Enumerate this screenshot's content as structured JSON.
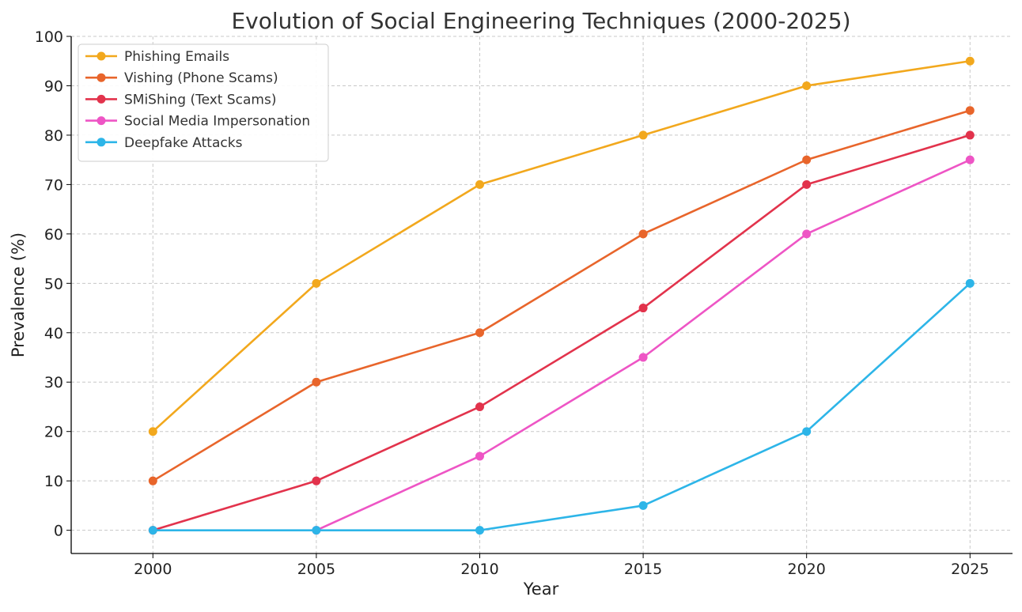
{
  "chart_data": {
    "type": "line",
    "title": "Evolution of Social Engineering Techniques (2000-2025)",
    "xlabel": "Year",
    "ylabel": "Prevalence (%)",
    "x": [
      2000,
      2005,
      2010,
      2015,
      2020,
      2025
    ],
    "xlim": [
      1997.5,
      2026.3
    ],
    "ylim": [
      -4.7,
      100
    ],
    "yticks": [
      0,
      10,
      20,
      30,
      40,
      50,
      60,
      70,
      80,
      90,
      100
    ],
    "xticks": [
      2000,
      2005,
      2010,
      2015,
      2020,
      2025
    ],
    "grid": true,
    "legend_position": "top-left",
    "series": [
      {
        "name": "Phishing Emails",
        "color": "#F2A81D",
        "values": [
          20,
          50,
          70,
          80,
          90,
          95
        ]
      },
      {
        "name": "Vishing (Phone Scams)",
        "color": "#E8652B",
        "values": [
          10,
          30,
          40,
          60,
          75,
          85
        ]
      },
      {
        "name": "SMiShing (Text Scams)",
        "color": "#E2334C",
        "values": [
          0,
          10,
          25,
          45,
          70,
          80
        ]
      },
      {
        "name": "Social Media Impersonation",
        "color": "#EE55C5",
        "values": [
          null,
          0,
          15,
          35,
          60,
          75
        ]
      },
      {
        "name": "Deepfake Attacks",
        "color": "#2DB5E8",
        "values": [
          0,
          0,
          0,
          5,
          20,
          50
        ]
      }
    ]
  }
}
